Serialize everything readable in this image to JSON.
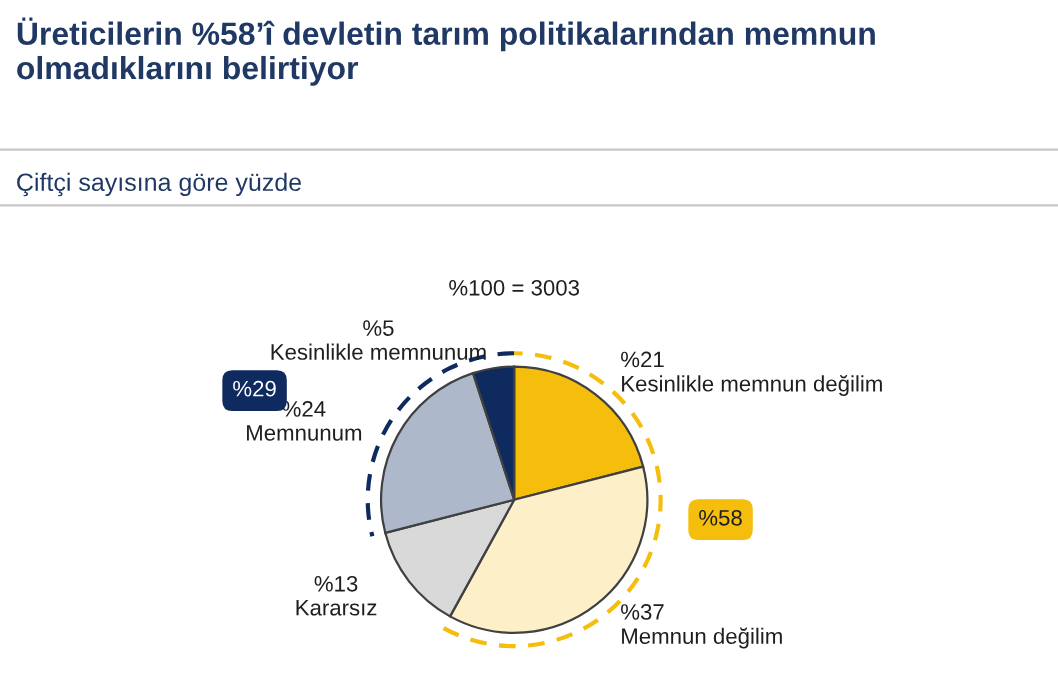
{
  "chart_data": {
    "type": "pie",
    "title": "Üreticilerin %58’î devletin tarım politikalarından memnun olmadıklarını belirtiyor",
    "subtitle": "Çiftçi sayısına göre yüzde",
    "categories": [
      "Kesinlikle memnun değilim",
      "Memnun değilim",
      "Kararsız",
      "Memnunum",
      "Kesinlikle memnunum"
    ],
    "values": [
      21,
      37,
      13,
      24,
      5
    ],
    "value_labels": [
      "%21",
      "%37",
      "%13",
      "%24",
      "%5"
    ],
    "colors": [
      "#f5bd0c",
      "#fdf0c8",
      "#d9d9d9",
      "#adb9ca",
      "#0f2a5e"
    ],
    "annotations": [
      "%100 = 3003",
      "%29",
      "%58"
    ]
  }
}
